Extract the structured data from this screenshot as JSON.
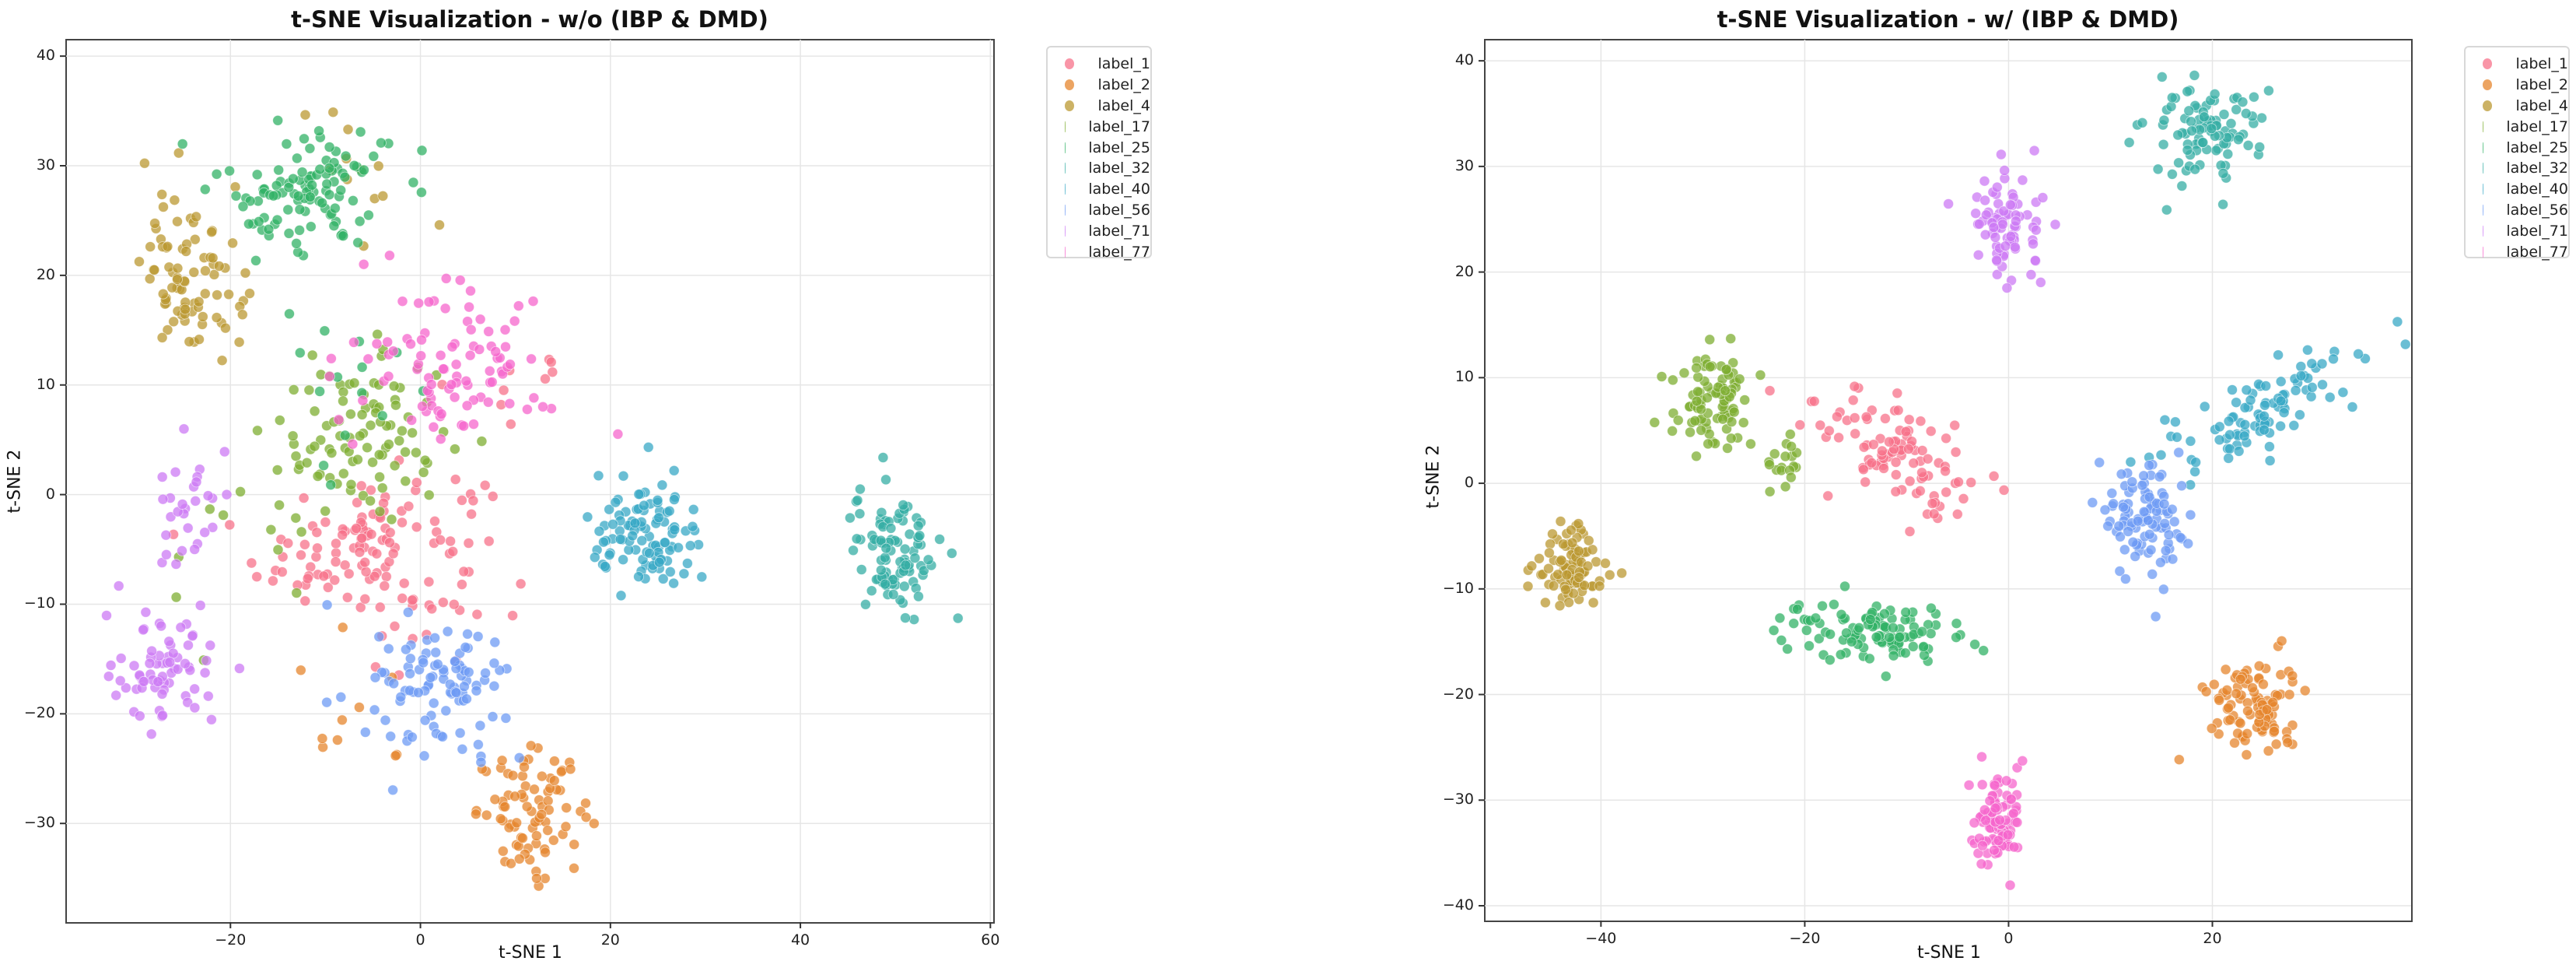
{
  "figure": {
    "palette": [
      "#f77189",
      "#e5862e",
      "#bb9832",
      "#7dad31",
      "#32b166",
      "#36ada4",
      "#38a8c5",
      "#6e9bf4",
      "#cc7af4",
      "#f565cc"
    ],
    "legend_labels": [
      "label_1",
      "label_2",
      "label_4",
      "label_17",
      "label_25",
      "label_32",
      "label_40",
      "label_56",
      "label_71",
      "label_77"
    ]
  },
  "chart_data": [
    {
      "type": "scatter",
      "title": "t-SNE Visualization - w/o (IBP & DMD)",
      "xlabel": "t-SNE 1",
      "ylabel": "t-SNE 2",
      "xlim": [
        -37.3,
        60.3
      ],
      "ylim": [
        -39.0,
        41.5
      ],
      "xticks": [
        -20,
        0,
        20,
        40,
        60
      ],
      "xtick_labels": [
        "−20",
        "0",
        "20",
        "40",
        "60"
      ],
      "yticks": [
        40,
        30,
        20,
        10,
        0,
        -10,
        -20,
        -30
      ],
      "ytick_labels": [
        "40",
        "30",
        "20",
        "10",
        "0",
        "−10",
        "−20",
        "−30"
      ],
      "grid": true,
      "legend_position": "outside upper right",
      "clusters": [
        {
          "label": "label_1",
          "center": [
            -5,
            -5
          ],
          "spread": [
            8,
            5
          ],
          "n": 130
        },
        {
          "label": "label_1",
          "center": [
            10,
            8
          ],
          "spread": [
            5,
            6
          ],
          "n": 10
        },
        {
          "label": "label_2",
          "center": [
            12,
            -29
          ],
          "spread": [
            4,
            3.5
          ],
          "n": 85
        },
        {
          "label": "label_2",
          "center": [
            -8,
            -20
          ],
          "spread": [
            6,
            5
          ],
          "n": 10
        },
        {
          "label": "label_4",
          "center": [
            -24,
            20
          ],
          "spread": [
            3.5,
            5
          ],
          "n": 85
        },
        {
          "label": "label_4",
          "center": [
            -7,
            30
          ],
          "spread": [
            4,
            4
          ],
          "n": 12
        },
        {
          "label": "label_17",
          "center": [
            -6,
            5
          ],
          "spread": [
            6,
            5
          ],
          "n": 95
        },
        {
          "label": "label_17",
          "center": [
            -18,
            -5
          ],
          "spread": [
            6,
            6
          ],
          "n": 12
        },
        {
          "label": "label_25",
          "center": [
            -12,
            28
          ],
          "spread": [
            6,
            4
          ],
          "n": 110
        },
        {
          "label": "label_25",
          "center": [
            -10,
            12
          ],
          "spread": [
            6,
            6
          ],
          "n": 14
        },
        {
          "label": "label_32",
          "center": [
            50,
            -5
          ],
          "spread": [
            3,
            4
          ],
          "n": 100
        },
        {
          "label": "label_40",
          "center": [
            24,
            -4
          ],
          "spread": [
            4,
            3.5
          ],
          "n": 105
        },
        {
          "label": "label_56",
          "center": [
            2,
            -18
          ],
          "spread": [
            5,
            4
          ],
          "n": 100
        },
        {
          "label": "label_71",
          "center": [
            -27,
            -16
          ],
          "spread": [
            4,
            3.5
          ],
          "n": 70
        },
        {
          "label": "label_71",
          "center": [
            -24,
            -3
          ],
          "spread": [
            3,
            5
          ],
          "n": 30
        },
        {
          "label": "label_77",
          "center": [
            3,
            12
          ],
          "spread": [
            7,
            5
          ],
          "n": 95
        }
      ]
    },
    {
      "type": "scatter",
      "title": "t-SNE Visualization - w/ (IBP & DMD)",
      "xlabel": "t-SNE 1",
      "ylabel": "t-SNE 2",
      "xlim": [
        -51.4,
        39.5
      ],
      "ylim": [
        -41.4,
        42.0
      ],
      "xticks": [
        -40,
        -20,
        0,
        20
      ],
      "xtick_labels": [
        "−40",
        "−20",
        "0",
        "20"
      ],
      "yticks": [
        40,
        30,
        20,
        10,
        0,
        -10,
        -20,
        -30,
        -40
      ],
      "ytick_labels": [
        "40",
        "30",
        "20",
        "10",
        "0",
        "−10",
        "−20",
        "−30",
        "−40"
      ],
      "grid": true,
      "legend_position": "outside upper right",
      "clusters": [
        {
          "label": "label_1",
          "center": [
            -11,
            3
          ],
          "spread": [
            5,
            3.5
          ],
          "n": 100,
          "tilt": -0.55
        },
        {
          "label": "label_2",
          "center": [
            24,
            -21
          ],
          "spread": [
            3,
            3
          ],
          "n": 100
        },
        {
          "label": "label_4",
          "center": [
            -43,
            -8
          ],
          "spread": [
            2.5,
            2.8
          ],
          "n": 95
        },
        {
          "label": "label_17",
          "center": [
            -29,
            8
          ],
          "spread": [
            2.5,
            3
          ],
          "n": 90
        },
        {
          "label": "label_17",
          "center": [
            -22,
            2
          ],
          "spread": [
            1.2,
            1.5
          ],
          "n": 18
        },
        {
          "label": "label_25",
          "center": [
            -14,
            -14
          ],
          "spread": [
            6,
            1.8
          ],
          "n": 110
        },
        {
          "label": "label_32",
          "center": [
            19,
            33
          ],
          "spread": [
            4,
            3
          ],
          "n": 95
        },
        {
          "label": "label_40",
          "center": [
            25,
            7
          ],
          "spread": [
            7,
            2.5
          ],
          "n": 100,
          "tilt": 0.45
        },
        {
          "label": "label_56",
          "center": [
            13,
            -3
          ],
          "spread": [
            2.8,
            3.5
          ],
          "n": 100
        },
        {
          "label": "label_71",
          "center": [
            0,
            24
          ],
          "spread": [
            2.4,
            3.5
          ],
          "n": 80
        },
        {
          "label": "label_77",
          "center": [
            -1,
            -32
          ],
          "spread": [
            1.6,
            3
          ],
          "n": 90
        }
      ]
    }
  ],
  "panels": [
    {
      "title": "t-SNE Visualization - w/o (IBP & DMD)",
      "xlabel": "t-SNE 1",
      "ylabel": "t-SNE 2"
    },
    {
      "title": "t-SNE Visualization - w/ (IBP & DMD)",
      "xlabel": "t-SNE 1",
      "ylabel": "t-SNE 2"
    }
  ]
}
